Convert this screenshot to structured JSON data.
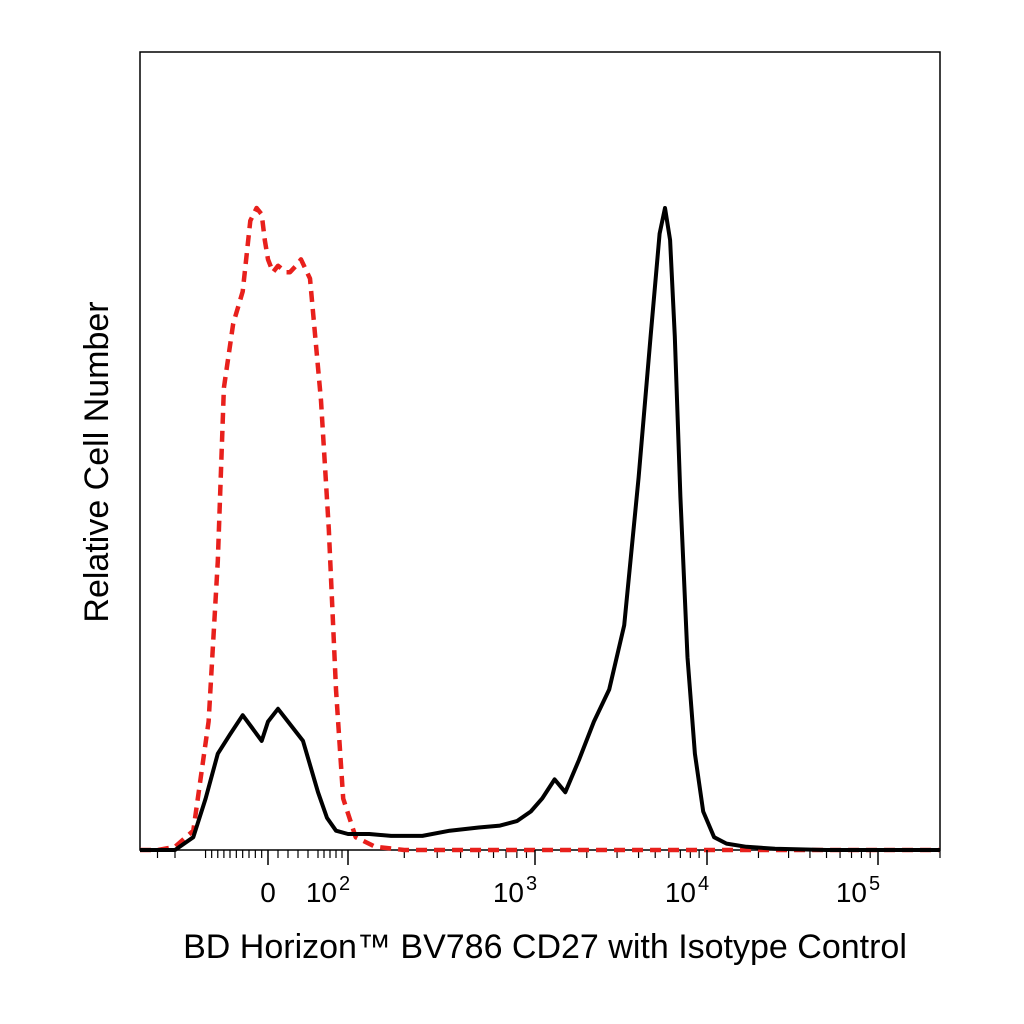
{
  "chart_data": {
    "type": "line",
    "title": "",
    "xlabel": "BD Horizon™ BV786 CD27 with Isotype Control",
    "ylabel": "Relative Cell Number",
    "x_scale": "biexponential",
    "x_ticks": [
      {
        "value": 0,
        "label": "0",
        "exponent": ""
      },
      {
        "value": 100,
        "label": "10",
        "exponent": "2"
      },
      {
        "value": 1000,
        "label": "10",
        "exponent": "3"
      },
      {
        "value": 10000,
        "label": "10",
        "exponent": "4"
      },
      {
        "value": 100000,
        "label": "10",
        "exponent": "5"
      }
    ],
    "xlim": [
      -250,
      200000
    ],
    "ylim": [
      0,
      100
    ],
    "grid": false,
    "legend": "none",
    "series": [
      {
        "style": "dashed",
        "color": "#e8201c",
        "x": [
          -250,
          -200,
          -150,
          -120,
          -95,
          -80,
          -70,
          -55,
          -40,
          -28,
          -18,
          -10,
          -5,
          0,
          5,
          10,
          18,
          22,
          28,
          33,
          42,
          55,
          68,
          80,
          92,
          110,
          140,
          200,
          1000,
          10000,
          100000,
          200000
        ],
        "y": [
          0,
          0,
          0.5,
          3,
          20,
          45,
          72,
          82,
          87,
          98,
          100,
          99,
          95,
          92,
          90,
          91,
          90,
          90,
          91,
          92,
          89,
          70,
          50,
          25,
          8,
          2,
          0.5,
          0,
          0,
          0,
          0,
          0
        ]
      },
      {
        "style": "solid",
        "color": "#000000",
        "x": [
          -250,
          -200,
          -150,
          -120,
          -100,
          -80,
          -60,
          -40,
          -25,
          -10,
          0,
          10,
          20,
          35,
          50,
          65,
          80,
          100,
          130,
          170,
          250,
          350,
          500,
          650,
          800,
          950,
          1100,
          1300,
          1500,
          1800,
          2200,
          2700,
          3300,
          4000,
          4700,
          5300,
          5700,
          6100,
          6500,
          7000,
          7700,
          8500,
          9500,
          11000,
          13000,
          17000,
          25000,
          50000,
          200000
        ],
        "y": [
          0,
          0,
          0,
          2,
          8,
          15,
          18,
          21,
          19,
          17,
          20,
          22,
          20,
          17,
          9,
          5,
          3,
          2.5,
          2.5,
          2.2,
          2.2,
          3,
          3.5,
          3.8,
          4.5,
          6,
          8,
          11,
          9,
          14,
          20,
          25,
          35,
          58,
          80,
          96,
          100,
          95,
          80,
          55,
          30,
          15,
          6,
          2,
          1,
          0.5,
          0.2,
          0,
          0
        ]
      }
    ]
  }
}
